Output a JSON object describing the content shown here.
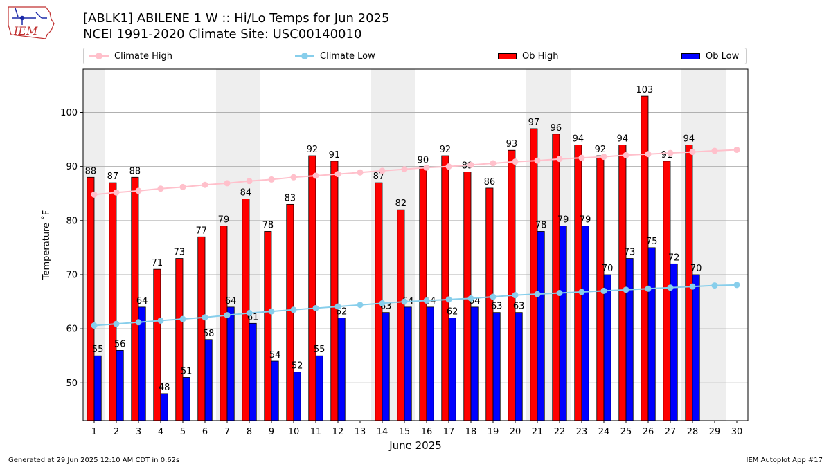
{
  "header": {
    "title_line1": "[ABLK1] ABILENE 1 W :: Hi/Lo Temps for Jun 2025",
    "title_line2": "NCEI 1991-2020 Climate Site: USC00140010",
    "logo_text": "IEM"
  },
  "legend": {
    "climate_high": "Climate High",
    "climate_low": "Climate Low",
    "ob_high": "Ob High",
    "ob_low": "Ob Low"
  },
  "colors": {
    "climate_high": "#ffc0cb",
    "climate_low": "#87ceeb",
    "ob_high": "#ff0000",
    "ob_low": "#0000ff",
    "weekend_shade": "#eeeeee"
  },
  "footer": {
    "generated": "Generated at 29 Jun 2025 12:10 AM CDT in 0.62s",
    "app": "IEM Autoplot App #17"
  },
  "chart_data": {
    "type": "bar",
    "xlabel": "June 2025",
    "ylabel": "Temperature ˚F",
    "ylim": [
      43,
      108
    ],
    "yticks": [
      50,
      60,
      70,
      80,
      90,
      100
    ],
    "grid": "horizontal",
    "legend_placement": "top",
    "days": [
      1,
      2,
      3,
      4,
      5,
      6,
      7,
      8,
      9,
      10,
      11,
      12,
      13,
      14,
      15,
      16,
      17,
      18,
      19,
      20,
      21,
      22,
      23,
      24,
      25,
      26,
      27,
      28,
      29,
      30
    ],
    "shaded_days": [
      [
        1,
        1
      ],
      [
        7,
        8
      ],
      [
        14,
        15
      ],
      [
        21,
        22
      ],
      [
        28,
        29
      ]
    ],
    "series": [
      {
        "name": "Ob High",
        "kind": "bar",
        "values": [
          88,
          87,
          88,
          71,
          73,
          77,
          79,
          84,
          78,
          83,
          92,
          91,
          null,
          87,
          82,
          90,
          92,
          89,
          86,
          93,
          97,
          96,
          94,
          92,
          94,
          103,
          91,
          94,
          null,
          null
        ]
      },
      {
        "name": "Ob Low",
        "kind": "bar",
        "values": [
          55,
          56,
          64,
          48,
          51,
          58,
          64,
          61,
          54,
          52,
          55,
          62,
          null,
          63,
          64,
          64,
          62,
          64,
          63,
          63,
          78,
          79,
          79,
          70,
          73,
          75,
          72,
          70,
          null,
          null
        ]
      },
      {
        "name": "Climate High",
        "kind": "line",
        "values": [
          84.8,
          85.2,
          85.5,
          85.9,
          86.2,
          86.6,
          86.9,
          87.3,
          87.6,
          88.0,
          88.3,
          88.6,
          88.9,
          89.2,
          89.5,
          89.8,
          90.0,
          90.3,
          90.6,
          90.9,
          91.1,
          91.4,
          91.6,
          91.8,
          92.1,
          92.3,
          92.5,
          92.7,
          92.9,
          93.1
        ]
      },
      {
        "name": "Climate Low",
        "kind": "line",
        "values": [
          60.6,
          60.9,
          61.2,
          61.5,
          61.8,
          62.1,
          62.5,
          62.9,
          63.2,
          63.5,
          63.8,
          64.1,
          64.4,
          64.7,
          65.0,
          65.2,
          65.4,
          65.6,
          65.9,
          66.2,
          66.4,
          66.6,
          66.8,
          67.0,
          67.2,
          67.4,
          67.6,
          67.8,
          68.0,
          68.1
        ]
      }
    ]
  }
}
